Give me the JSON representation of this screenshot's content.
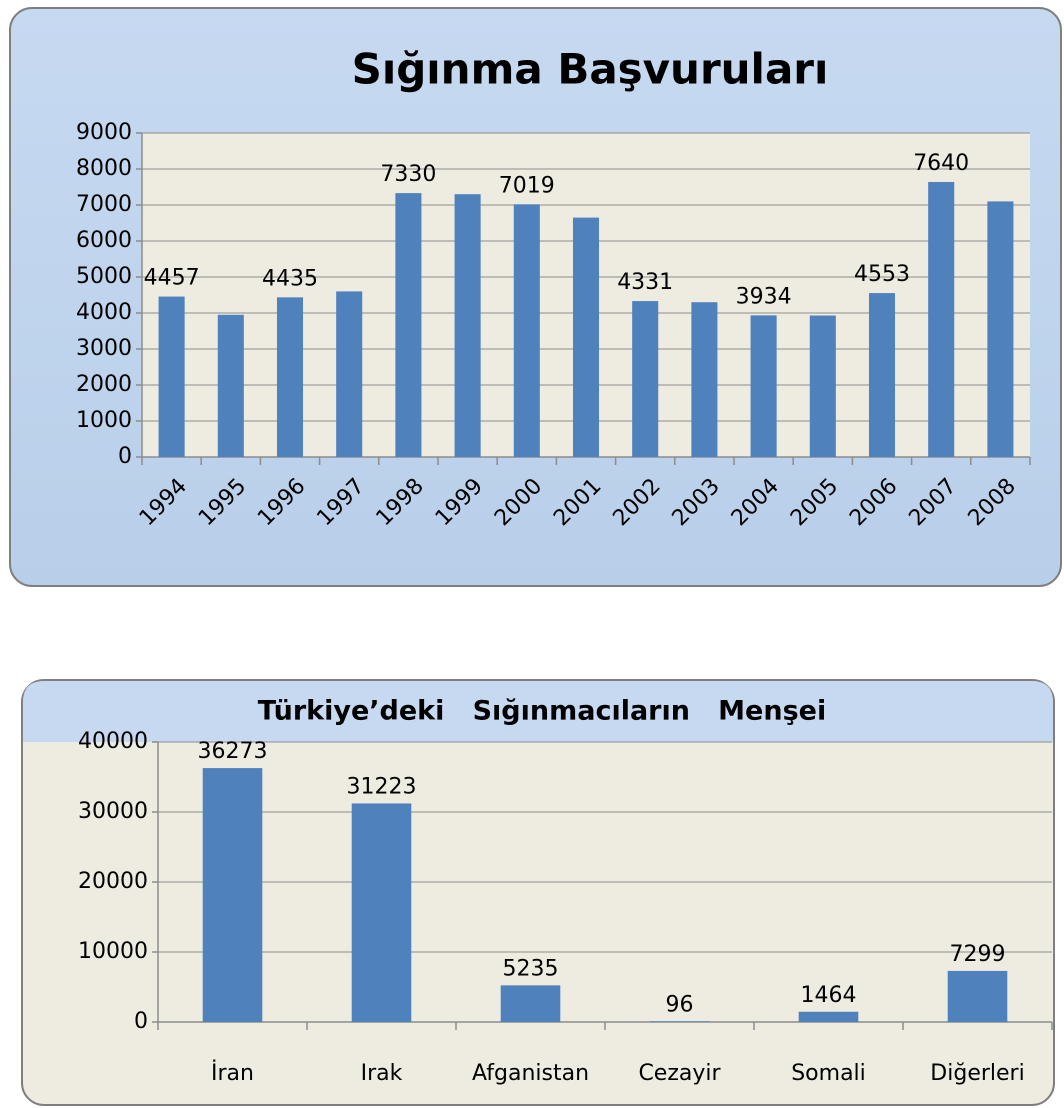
{
  "chart_data": [
    {
      "type": "bar",
      "title": "Sığınma Başvuruları",
      "categories": [
        "1994",
        "1995",
        "1996",
        "1997",
        "1998",
        "1999",
        "2000",
        "2001",
        "2002",
        "2003",
        "2004",
        "2005",
        "2006",
        "2007",
        "2008"
      ],
      "values": [
        4457,
        3950,
        4435,
        4600,
        7330,
        7300,
        7019,
        6650,
        4331,
        4300,
        3934,
        3930,
        4553,
        7640,
        7100
      ],
      "value_labels": [
        "4457",
        null,
        "4435",
        null,
        "7330",
        null,
        "7019",
        null,
        "4331",
        null,
        "3934",
        null,
        "4553",
        "7640",
        null
      ],
      "color": "#4f81bd",
      "ylim": [
        0,
        9000
      ],
      "yticks": [
        0,
        1000,
        2000,
        3000,
        4000,
        5000,
        6000,
        7000,
        8000,
        9000
      ],
      "grid": true
    },
    {
      "type": "bar",
      "title": "Türkiye’deki   Sığınmacıların   Menşei",
      "categories": [
        "İran",
        "Irak",
        "Afganistan",
        "Cezayir",
        "Somali",
        "Diğerleri"
      ],
      "values": [
        36273,
        31223,
        5235,
        96,
        1464,
        7299
      ],
      "color": "#4f81bd",
      "ylim": [
        0,
        40000
      ],
      "yticks": [
        0,
        10000,
        20000,
        30000,
        40000
      ],
      "grid": true
    }
  ]
}
